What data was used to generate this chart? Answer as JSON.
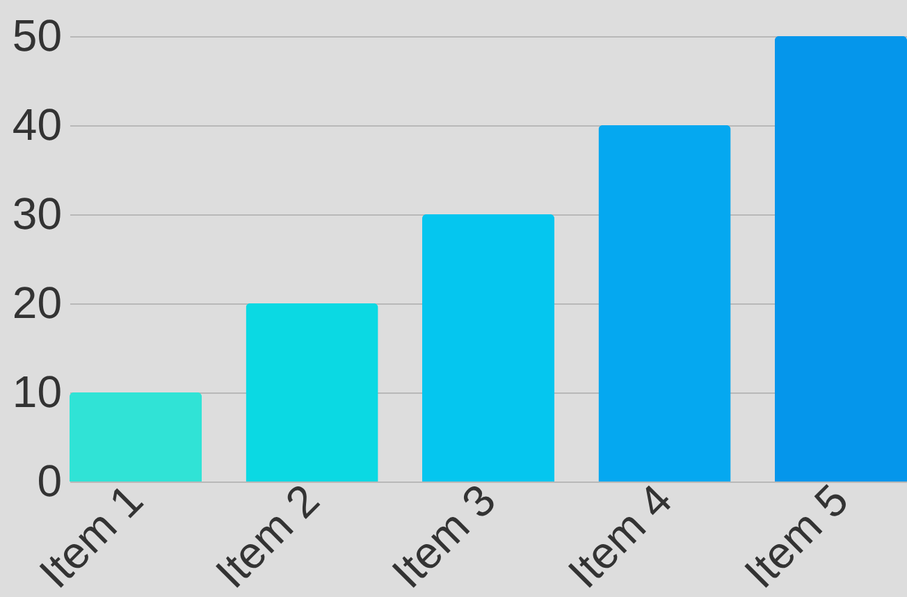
{
  "chart_data": {
    "type": "bar",
    "categories": [
      "Item 1",
      "Item 2",
      "Item 3",
      "Item 4",
      "Item 5"
    ],
    "values": [
      10,
      20,
      30,
      40,
      50
    ],
    "colors": [
      "#30e3d6",
      "#0bd9e3",
      "#05c6ef",
      "#05a8f0",
      "#0596eb"
    ],
    "ylim": [
      0,
      50
    ],
    "yticks": [
      0,
      10,
      20,
      30,
      40,
      50
    ],
    "grid": "y",
    "legend": false
  }
}
